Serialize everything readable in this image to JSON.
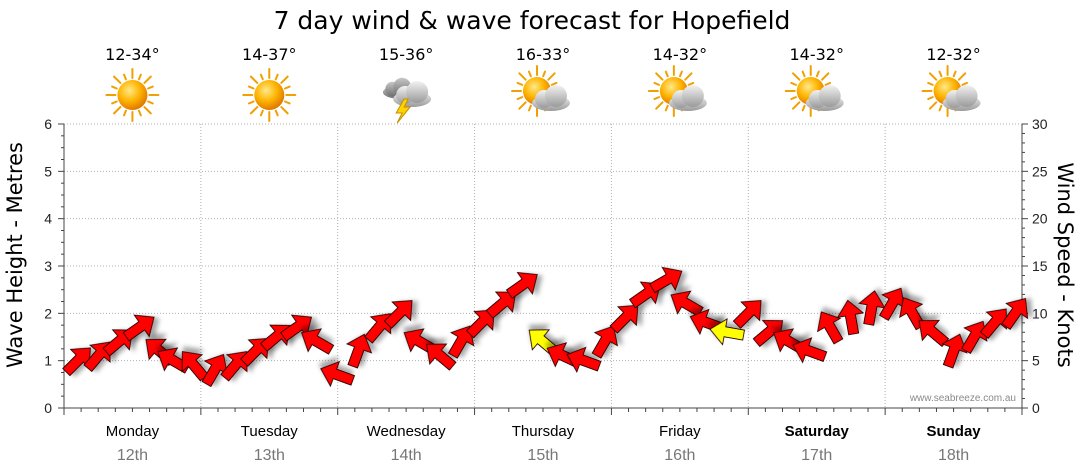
{
  "chart_data": {
    "type": "line",
    "title": "7 day wind & wave forecast for Hopefield",
    "ylabel_left": "Wave Height - Metres",
    "ylabel_right": "Wind Speed - Knots",
    "ylim_left": [
      0,
      6
    ],
    "ylim_right": [
      0,
      30
    ],
    "yticks_left": [
      "0",
      "1",
      "2",
      "3",
      "4",
      "5",
      "6"
    ],
    "yticks_right": [
      "0",
      "5",
      "10",
      "15",
      "20",
      "25",
      "30"
    ],
    "grid": true,
    "watermark": "www.seabreeze.com.au",
    "days": [
      {
        "name": "Monday",
        "date": "12th",
        "temp": "12-34°",
        "icon": "sunny",
        "bold": false
      },
      {
        "name": "Tuesday",
        "date": "13th",
        "temp": "14-37°",
        "icon": "sunny",
        "bold": false
      },
      {
        "name": "Wednesday",
        "date": "14th",
        "temp": "15-36°",
        "icon": "thunderstorm",
        "bold": false
      },
      {
        "name": "Thursday",
        "date": "15th",
        "temp": "16-33°",
        "icon": "partly-cloudy",
        "bold": false
      },
      {
        "name": "Friday",
        "date": "16th",
        "temp": "14-32°",
        "icon": "partly-cloudy",
        "bold": false
      },
      {
        "name": "Saturday",
        "date": "17th",
        "temp": "14-32°",
        "icon": "partly-cloudy",
        "bold": true
      },
      {
        "name": "Sunday",
        "date": "18th",
        "temp": "12-32°",
        "icon": "partly-cloudy",
        "bold": true
      }
    ],
    "wind_series": {
      "name": "Wind Speed (knots) with direction",
      "x_unit": "days from start",
      "x": [
        0.1,
        0.25,
        0.4,
        0.55,
        0.7,
        0.8,
        0.95,
        1.1,
        1.25,
        1.4,
        1.55,
        1.7,
        1.85,
        2.0,
        2.15,
        2.3,
        2.45,
        2.6,
        2.75,
        2.9,
        3.05,
        3.2,
        3.35,
        3.5,
        3.65,
        3.8,
        3.95,
        4.1,
        4.25,
        4.4,
        4.55,
        4.7,
        4.85,
        5.0,
        5.15,
        5.3,
        5.45,
        5.6,
        5.75,
        5.9,
        6.05,
        6.2,
        6.35,
        6.5,
        6.65,
        6.8,
        6.95
      ],
      "speed": [
        5,
        5.5,
        7,
        8.5,
        6,
        5,
        4.5,
        4,
        4.5,
        6,
        7.5,
        8.5,
        7,
        3.5,
        6,
        8.5,
        10,
        7,
        5.5,
        7,
        9,
        11,
        13,
        7,
        5.5,
        5,
        7,
        9.5,
        12,
        13.5,
        11,
        9,
        8,
        10,
        8,
        7,
        6,
        8.5,
        9.5,
        10.5,
        11,
        10,
        8,
        6,
        7.5,
        9,
        10
      ],
      "direction_deg": [
        45,
        50,
        40,
        35,
        140,
        150,
        130,
        60,
        50,
        45,
        40,
        35,
        150,
        160,
        70,
        50,
        45,
        150,
        140,
        60,
        45,
        40,
        35,
        140,
        155,
        160,
        60,
        45,
        35,
        30,
        150,
        160,
        170,
        45,
        40,
        150,
        160,
        120,
        100,
        80,
        60,
        120,
        140,
        70,
        60,
        50,
        55
      ],
      "highlighted_indices": [
        23,
        32
      ]
    }
  }
}
